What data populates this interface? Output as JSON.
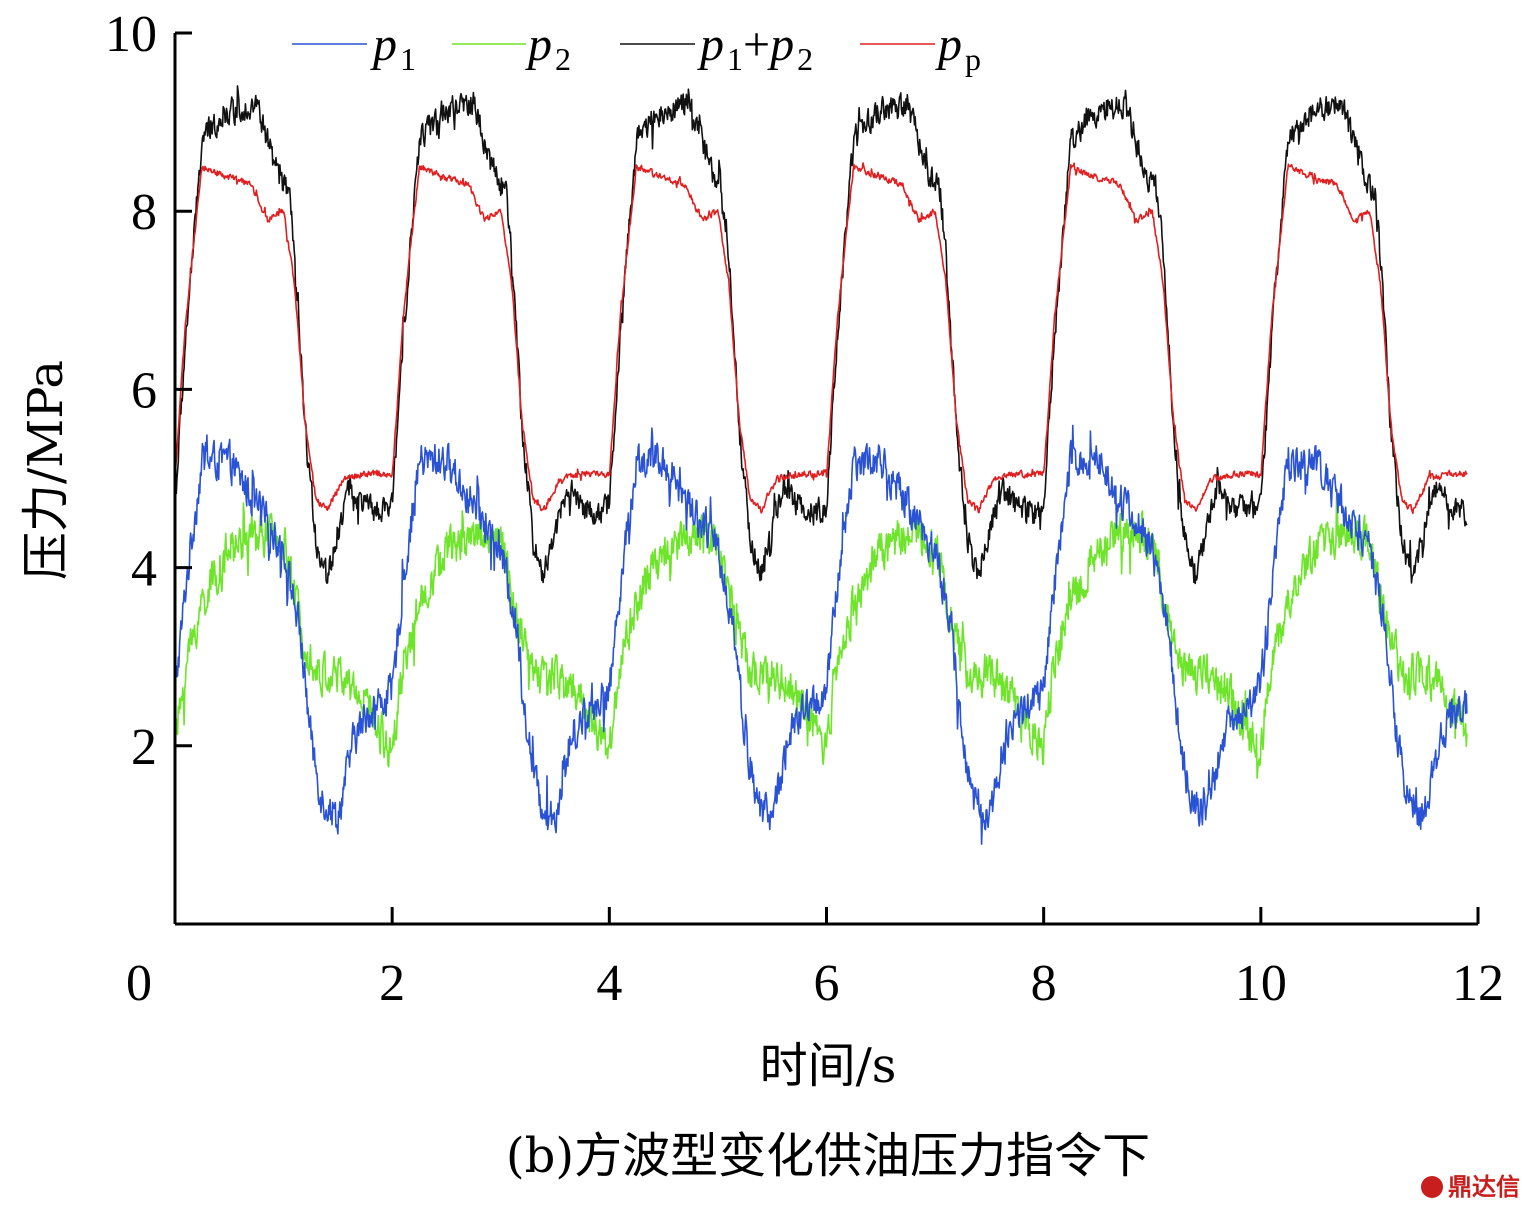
{
  "chart_data": {
    "type": "line",
    "xlabel": "时间/s",
    "ylabel": "压力/MPa",
    "caption": "(b)方波型变化供油压力指令下",
    "xlim": [
      0,
      12
    ],
    "ylim": [
      0,
      10
    ],
    "xticks": [
      0,
      2,
      4,
      6,
      8,
      10,
      12
    ],
    "yticks": [
      2,
      4,
      6,
      8,
      10
    ],
    "grid": false,
    "legend_position": "top",
    "period_s": 2,
    "series": [
      {
        "name": "p1",
        "name_main": "p",
        "name_sub": "1",
        "color": "#2a52d4",
        "noise": 0.28,
        "points": [
          [
            0,
            2.6
          ],
          [
            0.1,
            3.8
          ],
          [
            0.25,
            5.2
          ],
          [
            0.5,
            5.2
          ],
          [
            0.7,
            4.8
          ],
          [
            1.0,
            4.2
          ],
          [
            1.15,
            3.3
          ],
          [
            1.25,
            2.1
          ],
          [
            1.35,
            1.4
          ],
          [
            1.5,
            1.2
          ],
          [
            1.65,
            2.1
          ],
          [
            1.8,
            2.4
          ],
          [
            2.0,
            2.6
          ]
        ]
      },
      {
        "name": "p2",
        "name_main": "p",
        "name_sub": "2",
        "color": "#6ee42a",
        "noise": 0.32,
        "points": [
          [
            0,
            2.0
          ],
          [
            0.1,
            2.9
          ],
          [
            0.25,
            3.6
          ],
          [
            0.5,
            4.2
          ],
          [
            0.75,
            4.4
          ],
          [
            1.0,
            4.3
          ],
          [
            1.15,
            3.4
          ],
          [
            1.3,
            2.8
          ],
          [
            1.5,
            2.8
          ],
          [
            1.7,
            2.6
          ],
          [
            1.85,
            2.3
          ],
          [
            1.95,
            2.0
          ],
          [
            2.0,
            2.0
          ]
        ]
      },
      {
        "name": "p1+p2",
        "name_main": "p",
        "name_sub": "1",
        "name_plus": "+",
        "name_main2": "p",
        "name_sub2": "2",
        "color": "#111111",
        "noise": 0.2,
        "points": [
          [
            0,
            4.7
          ],
          [
            0.1,
            6.6
          ],
          [
            0.25,
            8.8
          ],
          [
            0.45,
            9.1
          ],
          [
            0.75,
            9.2
          ],
          [
            0.95,
            8.4
          ],
          [
            1.05,
            8.2
          ],
          [
            1.1,
            7.5
          ],
          [
            1.2,
            5.5
          ],
          [
            1.3,
            4.3
          ],
          [
            1.4,
            3.9
          ],
          [
            1.5,
            4.4
          ],
          [
            1.6,
            4.9
          ],
          [
            1.75,
            4.7
          ],
          [
            1.9,
            4.6
          ],
          [
            2.0,
            4.7
          ]
        ]
      },
      {
        "name": "pp",
        "name_main": "p",
        "name_sub": "p",
        "color": "#e02020",
        "noise": 0.05,
        "points": [
          [
            0,
            5.0
          ],
          [
            0.1,
            6.8
          ],
          [
            0.25,
            8.5
          ],
          [
            0.45,
            8.4
          ],
          [
            0.7,
            8.3
          ],
          [
            0.85,
            7.9
          ],
          [
            1.0,
            8.0
          ],
          [
            1.1,
            7.2
          ],
          [
            1.2,
            5.6
          ],
          [
            1.3,
            4.75
          ],
          [
            1.4,
            4.65
          ],
          [
            1.55,
            5.0
          ],
          [
            1.75,
            5.05
          ],
          [
            2.0,
            5.05
          ]
        ]
      }
    ]
  },
  "watermark": {
    "text": "鼎达信",
    "color": "#c81e1e"
  }
}
